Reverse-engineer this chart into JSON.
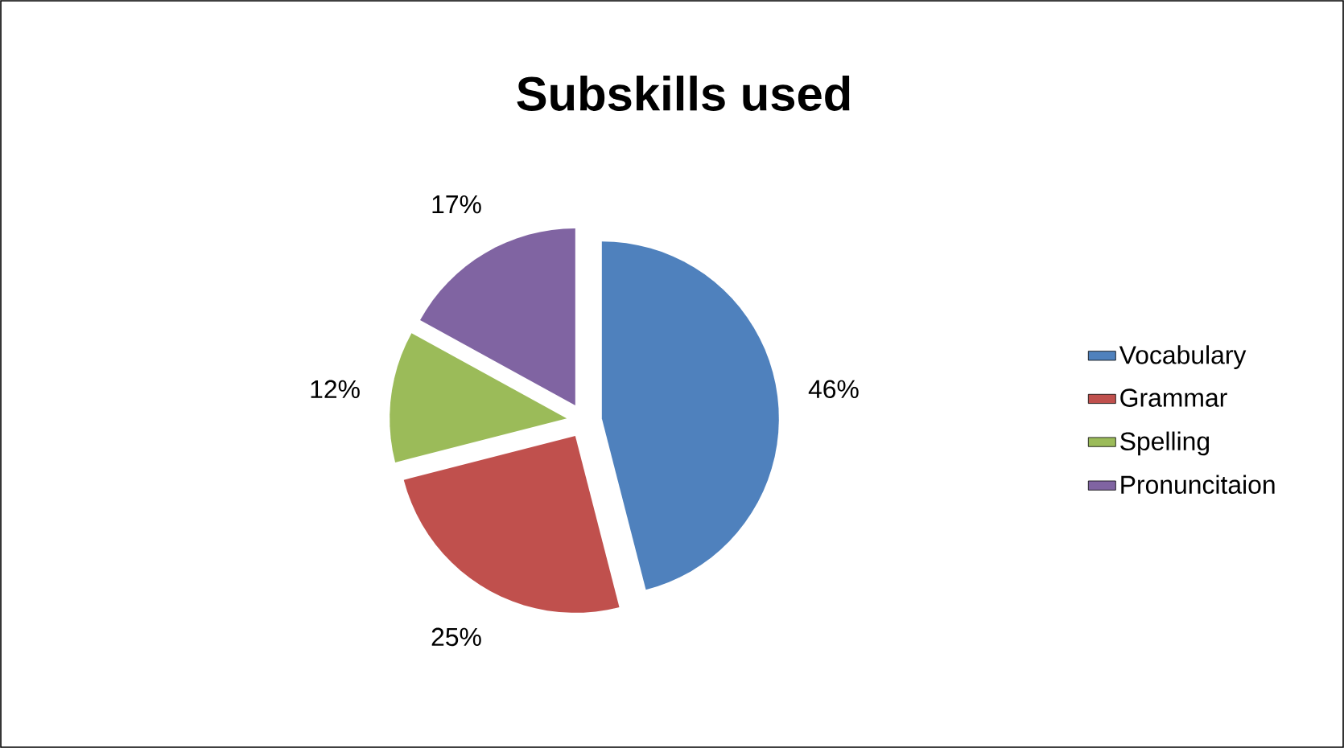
{
  "chart_data": {
    "type": "pie",
    "title": "Subskills used",
    "categories": [
      "Vocabulary",
      "Grammar",
      "Spelling",
      "Pronuncitaion"
    ],
    "values": [
      46,
      25,
      12,
      17
    ],
    "value_labels": [
      "46%",
      "25%",
      "12%",
      "17%"
    ],
    "colors": [
      "#4f81bd",
      "#c0504d",
      "#9bbb59",
      "#8064a2"
    ],
    "legend": "right"
  }
}
